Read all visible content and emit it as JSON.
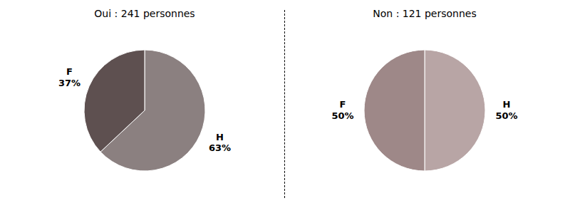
{
  "chart_data": [
    {
      "type": "pie",
      "title": "Oui : 241 personnes",
      "categories": [
        "H",
        "F"
      ],
      "values": [
        63,
        37
      ],
      "value_labels": [
        "63%",
        "37%"
      ],
      "colors": [
        "#8b8080",
        "#5e5050"
      ],
      "data_labels": true
    },
    {
      "type": "pie",
      "title": "Non : 121 personnes",
      "categories": [
        "H",
        "F"
      ],
      "values": [
        50,
        50
      ],
      "value_labels": [
        "50%",
        "50%"
      ],
      "colors": [
        "#b8a5a5",
        "#9e8888"
      ],
      "data_labels": true
    }
  ]
}
